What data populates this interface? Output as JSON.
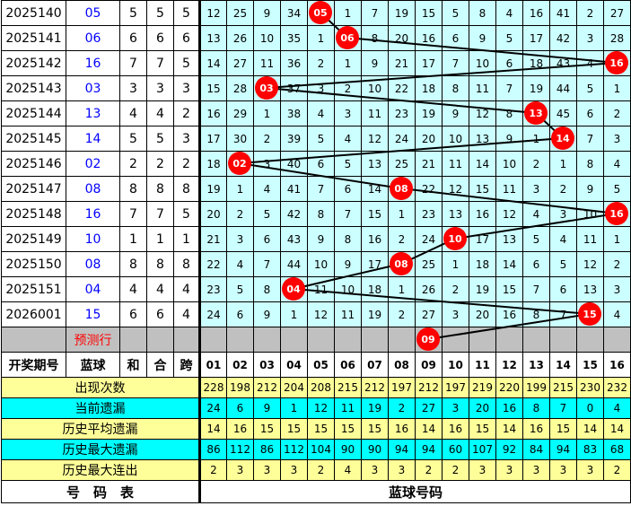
{
  "colors": {
    "ball": "#ff0000",
    "blue_text": "#0000ff",
    "grid_bg": "#ccffff",
    "stat_yellow": "#ffff99",
    "stat_cyan": "#00ffff",
    "prediction_bg": "#c0c0c0"
  },
  "rows": [
    {
      "period": "2025140",
      "blue": "05",
      "sum": "5",
      "he": "5",
      "span": "5",
      "hit": 5,
      "cells": [
        "12",
        "25",
        "9",
        "34",
        "05",
        "1",
        "7",
        "19",
        "15",
        "5",
        "8",
        "4",
        "16",
        "41",
        "2",
        "27"
      ]
    },
    {
      "period": "2025141",
      "blue": "06",
      "sum": "6",
      "he": "6",
      "span": "6",
      "hit": 6,
      "cells": [
        "13",
        "26",
        "10",
        "35",
        "1",
        "06",
        "8",
        "20",
        "16",
        "6",
        "9",
        "5",
        "17",
        "42",
        "3",
        "28"
      ]
    },
    {
      "period": "2025142",
      "blue": "16",
      "sum": "7",
      "he": "7",
      "span": "5",
      "hit": 16,
      "cells": [
        "14",
        "27",
        "11",
        "36",
        "2",
        "1",
        "9",
        "21",
        "17",
        "7",
        "10",
        "6",
        "18",
        "43",
        "4",
        "16"
      ]
    },
    {
      "period": "2025143",
      "blue": "03",
      "sum": "3",
      "he": "3",
      "span": "3",
      "hit": 3,
      "cells": [
        "15",
        "28",
        "03",
        "37",
        "3",
        "2",
        "10",
        "22",
        "18",
        "8",
        "11",
        "7",
        "19",
        "44",
        "5",
        "1"
      ]
    },
    {
      "period": "2025144",
      "blue": "13",
      "sum": "4",
      "he": "4",
      "span": "2",
      "hit": 13,
      "cells": [
        "16",
        "29",
        "1",
        "38",
        "4",
        "3",
        "11",
        "23",
        "19",
        "9",
        "12",
        "8",
        "13",
        "45",
        "6",
        "2"
      ]
    },
    {
      "period": "2025145",
      "blue": "14",
      "sum": "5",
      "he": "5",
      "span": "3",
      "hit": 14,
      "cells": [
        "17",
        "30",
        "2",
        "39",
        "5",
        "4",
        "12",
        "24",
        "20",
        "10",
        "13",
        "9",
        "1",
        "14",
        "7",
        "3"
      ]
    },
    {
      "period": "2025146",
      "blue": "02",
      "sum": "2",
      "he": "2",
      "span": "2",
      "hit": 2,
      "cells": [
        "18",
        "02",
        "3",
        "40",
        "6",
        "5",
        "13",
        "25",
        "21",
        "11",
        "14",
        "10",
        "2",
        "1",
        "8",
        "4"
      ]
    },
    {
      "period": "2025147",
      "blue": "08",
      "sum": "8",
      "he": "8",
      "span": "8",
      "hit": 8,
      "cells": [
        "19",
        "1",
        "4",
        "41",
        "7",
        "6",
        "14",
        "08",
        "22",
        "12",
        "15",
        "11",
        "3",
        "2",
        "9",
        "5"
      ]
    },
    {
      "period": "2025148",
      "blue": "16",
      "sum": "7",
      "he": "7",
      "span": "5",
      "hit": 16,
      "cells": [
        "20",
        "2",
        "5",
        "42",
        "8",
        "7",
        "15",
        "1",
        "23",
        "13",
        "16",
        "12",
        "4",
        "3",
        "10",
        "16"
      ]
    },
    {
      "period": "2025149",
      "blue": "10",
      "sum": "1",
      "he": "1",
      "span": "1",
      "hit": 10,
      "cells": [
        "21",
        "3",
        "6",
        "43",
        "9",
        "8",
        "16",
        "2",
        "24",
        "10",
        "17",
        "13",
        "5",
        "4",
        "11",
        "1"
      ]
    },
    {
      "period": "2025150",
      "blue": "08",
      "sum": "8",
      "he": "8",
      "span": "8",
      "hit": 8,
      "cells": [
        "22",
        "4",
        "7",
        "44",
        "10",
        "9",
        "17",
        "08",
        "25",
        "1",
        "18",
        "14",
        "6",
        "5",
        "12",
        "2"
      ]
    },
    {
      "period": "2025151",
      "blue": "04",
      "sum": "4",
      "he": "4",
      "span": "4",
      "hit": 4,
      "cells": [
        "23",
        "5",
        "8",
        "04",
        "11",
        "10",
        "18",
        "1",
        "26",
        "2",
        "19",
        "15",
        "7",
        "6",
        "13",
        "3"
      ]
    },
    {
      "period": "2026001",
      "blue": "15",
      "sum": "6",
      "he": "6",
      "span": "4",
      "hit": 15,
      "cells": [
        "24",
        "6",
        "9",
        "1",
        "12",
        "11",
        "19",
        "2",
        "27",
        "3",
        "20",
        "16",
        "8",
        "7",
        "15",
        "4"
      ]
    }
  ],
  "prediction": {
    "label": "预测行",
    "hit": 9,
    "ball": "09"
  },
  "header": {
    "period": "开奖期号",
    "blue": "蓝球",
    "sum": "和",
    "he": "合",
    "span": "跨",
    "numbers": [
      "01",
      "02",
      "03",
      "04",
      "05",
      "06",
      "07",
      "08",
      "09",
      "10",
      "11",
      "12",
      "13",
      "14",
      "15",
      "16"
    ]
  },
  "stats": [
    {
      "label": "出现次数",
      "style": "y",
      "values": [
        "228",
        "198",
        "212",
        "204",
        "208",
        "215",
        "212",
        "197",
        "212",
        "197",
        "219",
        "220",
        "199",
        "215",
        "230",
        "232"
      ]
    },
    {
      "label": "当前遗漏",
      "style": "c",
      "values": [
        "24",
        "6",
        "9",
        "1",
        "12",
        "11",
        "19",
        "2",
        "27",
        "3",
        "20",
        "16",
        "8",
        "7",
        "0",
        "4"
      ]
    },
    {
      "label": "历史平均遗漏",
      "style": "y",
      "values": [
        "14",
        "16",
        "15",
        "15",
        "15",
        "15",
        "15",
        "16",
        "14",
        "16",
        "15",
        "14",
        "16",
        "15",
        "14",
        "14"
      ]
    },
    {
      "label": "历史最大遗漏",
      "style": "c",
      "values": [
        "86",
        "112",
        "86",
        "112",
        "104",
        "90",
        "90",
        "94",
        "94",
        "60",
        "107",
        "92",
        "84",
        "94",
        "83",
        "68"
      ]
    },
    {
      "label": "历史最大连出",
      "style": "y",
      "values": [
        "2",
        "3",
        "3",
        "3",
        "2",
        "4",
        "3",
        "3",
        "2",
        "2",
        "3",
        "3",
        "3",
        "3",
        "3",
        "2"
      ]
    }
  ],
  "footer": {
    "left": "号　码　表",
    "right": "蓝球号码"
  }
}
